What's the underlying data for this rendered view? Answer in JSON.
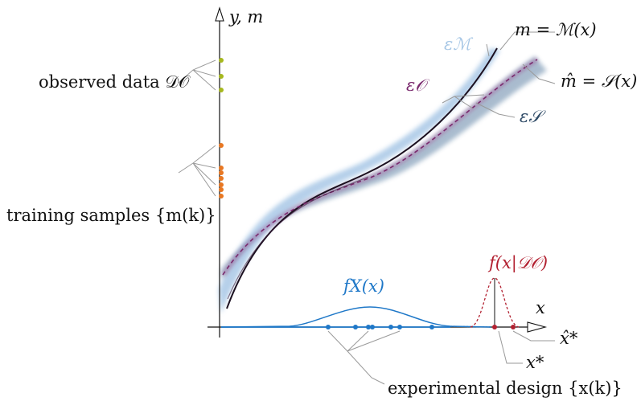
{
  "axes": {
    "y_label": "y, m",
    "x_label": "x"
  },
  "labels": {
    "model": "m = ℳ(x)",
    "surrogate": "m̂ = 𝒮(x)",
    "eps_model": "εℳ",
    "eps_obs": "ε𝒪",
    "eps_surr": "ε𝒮",
    "observed_data": "observed data 𝒟𝒪",
    "training_samples": "training samples {m(k)}",
    "prior_density": "fX(x)",
    "posterior_density": "f(x|𝒟𝒪)",
    "x_hat_star": "x̂*",
    "x_star": "x*",
    "experimental_design": "experimental design {x(k)}"
  },
  "colors": {
    "axis": "#111111",
    "model_curve": "#1c1020",
    "surrogate_curve": "#7a2a6e",
    "band_model": "#a9c8e6",
    "band_surrogate": "#6f8fae",
    "band_obs": "#8a3f86",
    "observed_points": "#a6b81e",
    "training_points": "#e87722",
    "prior_curve": "#1f78c8",
    "posterior_curve": "#b22030",
    "leader_lines": "#9a9a9a"
  },
  "points": {
    "observed_count": 3,
    "training_count": 7,
    "design_count": 7,
    "posterior_markers": 2
  }
}
